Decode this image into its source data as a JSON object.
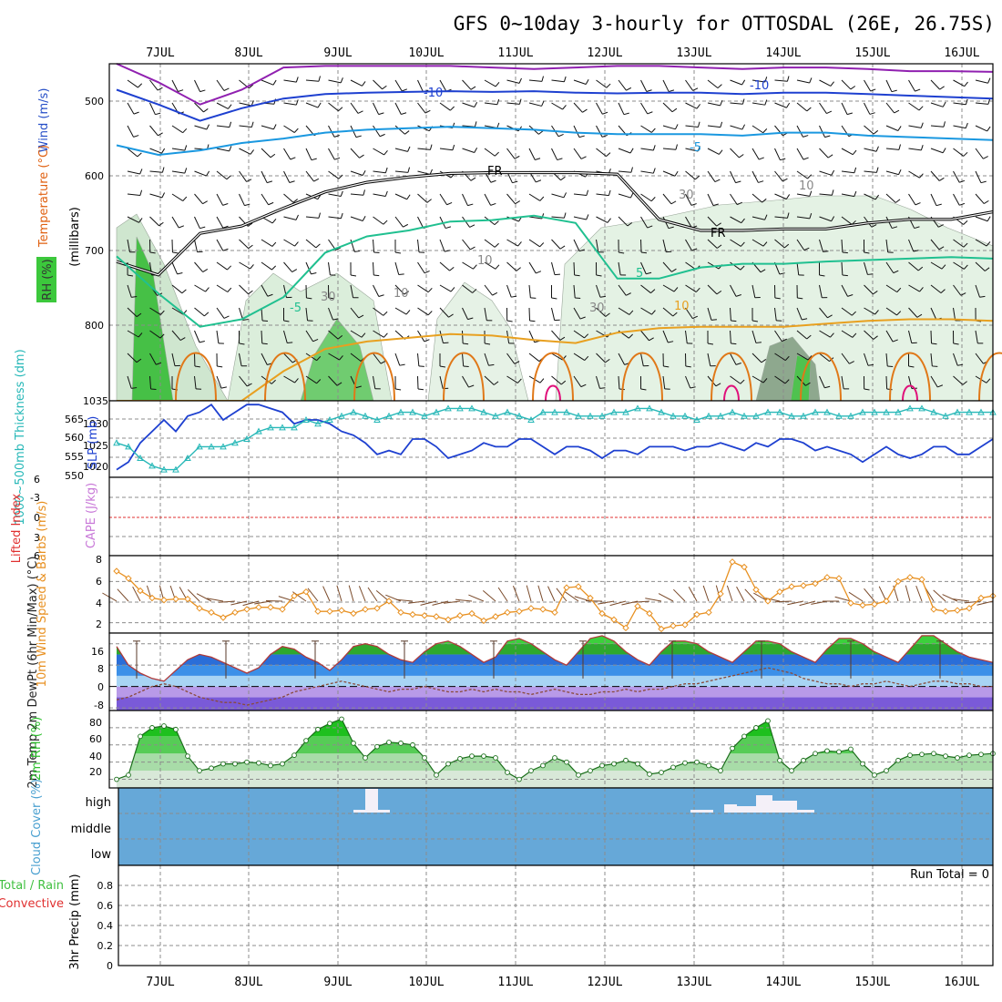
{
  "title": "GFS 0~10day 3-hourly for OTTOSDAL (26E, 26.75S)",
  "date_labels": [
    "7JUL",
    "8JUL",
    "9JUL",
    "10JUL",
    "11JUL",
    "12JUL",
    "13JUL",
    "14JUL",
    "15JUL",
    "16JUL"
  ],
  "colors": {
    "rh": "#3cc83c",
    "temp": "#e06010",
    "wind": "#2850c8",
    "slp": "#1e40d0",
    "thick": "#28b8b8",
    "cape": "#c878d8",
    "li": "#e03030",
    "wind10": "#e89020",
    "rh2m": "#2ec02e",
    "cloud": "#66a8d8",
    "precip_total": "#40c040",
    "precip_conv": "#e03030"
  },
  "chart_data": [
    {
      "id": "upper_air",
      "type": "contour",
      "ylabel_parts": [
        "Wind (m/s)",
        "Temperature (°C)",
        "RH (%)",
        "(millibars)"
      ],
      "y_ticks": [
        500,
        600,
        700,
        800
      ],
      "ylim": [
        900,
        445
      ],
      "contour_labels": [
        "-10",
        "-10",
        "-5",
        "FR",
        "FR",
        "5",
        "-5",
        "10",
        "10",
        "10",
        "30",
        "30",
        "30",
        "10"
      ],
      "isotherms": [
        {
          "name": "-15",
          "color": "#9020b0",
          "values": [
            430,
            470,
            500,
            480,
            450,
            448,
            448,
            448,
            448,
            450,
            452,
            450,
            448,
            448,
            450,
            452,
            450,
            450,
            452,
            455,
            455,
            456
          ]
        },
        {
          "name": "-10",
          "color": "#1e40d0",
          "values": [
            480,
            500,
            522,
            505,
            492,
            486,
            484,
            483,
            482,
            483,
            482,
            484,
            485,
            484,
            484,
            486,
            484,
            484,
            486,
            488,
            490,
            492
          ]
        },
        {
          "name": "-5",
          "color": "#1a98e0",
          "values": [
            555,
            568,
            562,
            552,
            546,
            538,
            534,
            532,
            530,
            532,
            534,
            538,
            540,
            540,
            540,
            542,
            538,
            538,
            542,
            544,
            546,
            548
          ]
        },
        {
          "name": "FR",
          "color": "#000000",
          "values": [
            712,
            730,
            674,
            664,
            640,
            618,
            605,
            598,
            593,
            592,
            592,
            592,
            594,
            655,
            670,
            670,
            668,
            668,
            660,
            655,
            655,
            645
          ]
        },
        {
          "name": "5",
          "color": "#20c090",
          "values": [
            705,
            755,
            800,
            790,
            760,
            700,
            678,
            670,
            658,
            656,
            650,
            660,
            735,
            735,
            720,
            715,
            715,
            712,
            710,
            708,
            706,
            708
          ]
        },
        {
          "name": "10",
          "color": "#e8a020",
          "values": [
            900,
            900,
            900,
            900,
            860,
            830,
            820,
            815,
            810,
            812,
            818,
            822,
            808,
            802,
            800,
            800,
            800,
            796,
            792,
            790,
            790,
            792
          ]
        }
      ]
    },
    {
      "id": "slp_thickness",
      "type": "line",
      "ylabel": "SLP (mb)",
      "ylabel2": "1000~500mb Thickness (dm)",
      "y_ticks_left": [
        "565",
        "560",
        "555",
        "550"
      ],
      "y_ticks_right": [
        "1030",
        "1025",
        "1020"
      ],
      "y_top_label": "1035",
      "series": [
        {
          "name": "SLP",
          "unit": "mb",
          "values": [
            1018,
            1020,
            1025,
            1028,
            1031,
            1028,
            1032,
            1033,
            1035,
            1031,
            1033,
            1035,
            1035,
            1034,
            1033,
            1030,
            1031,
            1031,
            1030,
            1028,
            1027,
            1025,
            1022,
            1023,
            1022,
            1026,
            1026,
            1024,
            1021,
            1022,
            1023,
            1025,
            1024,
            1024,
            1026,
            1026,
            1024,
            1022,
            1024,
            1024,
            1023,
            1021,
            1023,
            1023,
            1022,
            1024,
            1024,
            1024,
            1023,
            1024,
            1024,
            1025,
            1024,
            1023,
            1025,
            1024,
            1026,
            1026,
            1025,
            1023,
            1024,
            1023,
            1022,
            1020,
            1022,
            1024,
            1022,
            1021,
            1022,
            1024,
            1024,
            1022,
            1022,
            1024,
            1026
          ]
        },
        {
          "name": "Thickness",
          "unit": "dm",
          "values": [
            557,
            556,
            553,
            551,
            550,
            550,
            553,
            556,
            556,
            556,
            557,
            558,
            560,
            561,
            561,
            561,
            563,
            562,
            563,
            564,
            565,
            564,
            563,
            564,
            565,
            565,
            564,
            565,
            566,
            566,
            566,
            565,
            564,
            565,
            564,
            563,
            565,
            565,
            565,
            564,
            564,
            564,
            565,
            565,
            566,
            566,
            565,
            564,
            564,
            563,
            564,
            564,
            565,
            564,
            564,
            565,
            565,
            564,
            564,
            565,
            565,
            564,
            564,
            565,
            565,
            565,
            565,
            566,
            566,
            565,
            564,
            565,
            565,
            565,
            565
          ]
        }
      ]
    },
    {
      "id": "cape_li",
      "type": "line",
      "ylabel": "CAPE (J/kg)",
      "ylabel2": "Lifted Index",
      "y_ticks": [
        "-3",
        "0",
        "3",
        "6"
      ],
      "y_top_label": "6"
    },
    {
      "id": "wind10m",
      "type": "line",
      "ylabel": "10m Wind Speed & Barbs (m/s)",
      "y_ticks": [
        "2",
        "4",
        "6",
        "8"
      ],
      "ylim": [
        1,
        8
      ],
      "speed": [
        7.0,
        6.3,
        5.1,
        4.4,
        4.2,
        4.3,
        4.3,
        3.4,
        3.0,
        2.5,
        3.0,
        3.3,
        3.5,
        3.5,
        3.3,
        4.6,
        5.0,
        3.1,
        3.1,
        3.2,
        2.9,
        3.3,
        3.4,
        4.1,
        3.0,
        2.8,
        2.7,
        2.6,
        2.3,
        2.7,
        2.9,
        2.2,
        2.6,
        3.0,
        3.1,
        3.4,
        3.3,
        3.0,
        5.4,
        5.5,
        4.4,
        2.9,
        2.3,
        1.5,
        3.6,
        2.9,
        1.4,
        1.7,
        1.8,
        2.8,
        3.0,
        4.8,
        7.9,
        7.4,
        5.2,
        4.1,
        5.0,
        5.5,
        5.6,
        5.8,
        6.4,
        6.3,
        3.9,
        3.7,
        3.8,
        4.1,
        6.0,
        6.4,
        6.2,
        3.3,
        3.1,
        3.2,
        3.4,
        4.4,
        4.6
      ]
    },
    {
      "id": "temp2m",
      "type": "area",
      "ylabel": "2m Temp 2m DewPt (6hr Min/Max) (°C)",
      "y_ticks": [
        "-8",
        "0",
        "8",
        "16"
      ],
      "ylim": [
        -9,
        20
      ],
      "temp": [
        15,
        8,
        5,
        3,
        2,
        6,
        10,
        12,
        11,
        9,
        7,
        5,
        7,
        12,
        15,
        14,
        11,
        9,
        6,
        10,
        15,
        16,
        15,
        12,
        10,
        9,
        13,
        16,
        17,
        15,
        12,
        9,
        11,
        17,
        18,
        16,
        13,
        10,
        8,
        13,
        18,
        19,
        17,
        13,
        10,
        8,
        13,
        17,
        17,
        16,
        13,
        11,
        9,
        13,
        17,
        17,
        16,
        13,
        11,
        9,
        14,
        18,
        18,
        16,
        13,
        11,
        9,
        14,
        19,
        19,
        16,
        13,
        11,
        10,
        9
      ],
      "dewpt": [
        -5,
        -4,
        -2,
        0,
        1,
        0,
        -2,
        -4,
        -5,
        -6,
        -6,
        -7,
        -6,
        -5,
        -4,
        -2,
        -1,
        0,
        1,
        2,
        1,
        0,
        -1,
        -2,
        -1,
        -1,
        0,
        -1,
        -2,
        -2,
        -1,
        -2,
        -1,
        -2,
        -2,
        -3,
        -2,
        -1,
        -2,
        -3,
        -3,
        -2,
        -2,
        -1,
        -2,
        -1,
        -1,
        0,
        1,
        1,
        2,
        3,
        4,
        5,
        6,
        7,
        6,
        5,
        3,
        2,
        1,
        1,
        0,
        1,
        1,
        2,
        1,
        0,
        1,
        2,
        2,
        1,
        1,
        0,
        0
      ]
    },
    {
      "id": "rh2m",
      "type": "area",
      "ylabel": "2m RH (%)",
      "y_ticks": [
        "20",
        "40",
        "60",
        "80"
      ],
      "ylim": [
        10,
        100
      ],
      "values": [
        20,
        25,
        70,
        80,
        82,
        78,
        47,
        30,
        33,
        38,
        38,
        40,
        39,
        36,
        38,
        48,
        65,
        78,
        85,
        90,
        62,
        45,
        58,
        63,
        62,
        60,
        45,
        25,
        38,
        44,
        47,
        47,
        45,
        28,
        20,
        30,
        36,
        45,
        40,
        25,
        30,
        36,
        38,
        42,
        38,
        26,
        28,
        34,
        39,
        40,
        36,
        30,
        56,
        70,
        80,
        88,
        42,
        30,
        42,
        50,
        53,
        52,
        55,
        38,
        25,
        30,
        42,
        48,
        49,
        50,
        47,
        45,
        48,
        49,
        50
      ]
    },
    {
      "id": "cloud",
      "type": "heatmap",
      "ylabel": "Cloud Cover (%)",
      "levels": [
        "high",
        "middle",
        "low"
      ]
    },
    {
      "id": "precip",
      "type": "bar",
      "ylabel": "3hr Precip (mm)",
      "legend": [
        "Total / Rain",
        "Convective"
      ],
      "y_ticks": [
        "0",
        "0.2",
        "0.4",
        "0.6",
        "0.8"
      ],
      "ylim": [
        0,
        1
      ],
      "run_total": "Run Total = 0"
    }
  ]
}
